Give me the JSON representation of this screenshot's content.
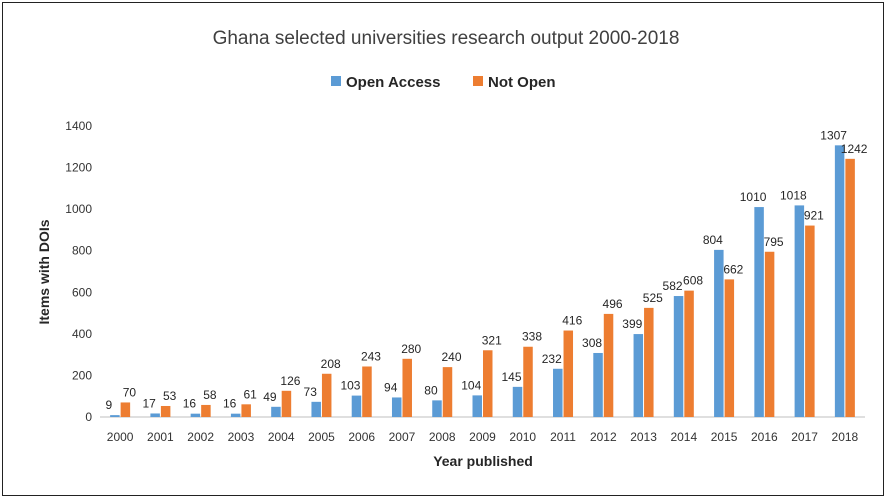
{
  "chart_data": {
    "type": "bar",
    "title": "Ghana selected universities research output 2000-2018",
    "xlabel": "Year published",
    "ylabel": "Items with DOIs",
    "categories": [
      "2000",
      "2001",
      "2002",
      "2003",
      "2004",
      "2005",
      "2006",
      "2007",
      "2008",
      "2009",
      "2010",
      "2011",
      "2012",
      "2013",
      "2014",
      "2015",
      "2016",
      "2017",
      "2018"
    ],
    "series": [
      {
        "name": "Open Access",
        "color": "#5b9bd5",
        "values": [
          9,
          17,
          16,
          16,
          49,
          73,
          103,
          94,
          80,
          104,
          145,
          232,
          308,
          399,
          582,
          804,
          1010,
          1018,
          1307
        ]
      },
      {
        "name": "Not Open",
        "color": "#ed7d31",
        "values": [
          70,
          53,
          58,
          61,
          126,
          208,
          243,
          280,
          240,
          321,
          338,
          416,
          496,
          525,
          608,
          662,
          795,
          921,
          1242
        ]
      }
    ],
    "ylim": [
      0,
      1400
    ],
    "yticks": [
      0,
      200,
      400,
      600,
      800,
      1000,
      1200,
      1400
    ],
    "legend_position": "top",
    "grid": false,
    "data_labels": true
  }
}
